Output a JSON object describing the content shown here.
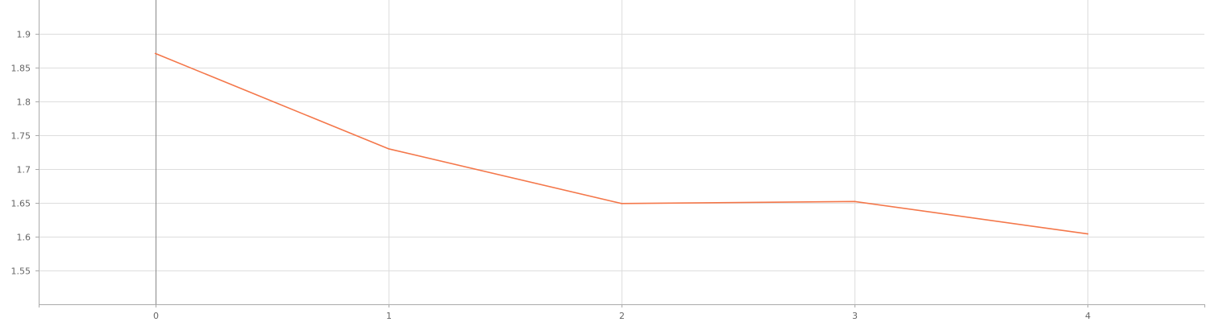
{
  "chart_data": {
    "type": "line",
    "x": [
      0,
      1,
      2,
      3,
      4
    ],
    "series": [
      {
        "values": [
          1.871,
          1.73,
          1.649,
          1.652,
          1.604
        ]
      }
    ],
    "xlim": [
      -0.5,
      4.5
    ],
    "ylim": [
      1.5,
      1.95
    ],
    "xticks": [
      "0",
      "1",
      "2",
      "3",
      "4"
    ],
    "yticks": [
      "1.55",
      "1.6",
      "1.65",
      "1.7",
      "1.75",
      "1.8",
      "1.85",
      "1.9"
    ],
    "grid": true,
    "line_color": "#f4774a",
    "grid_color": "#dddddd",
    "axis_color": "#aaaaaa",
    "zero_line_color": "#888888"
  }
}
